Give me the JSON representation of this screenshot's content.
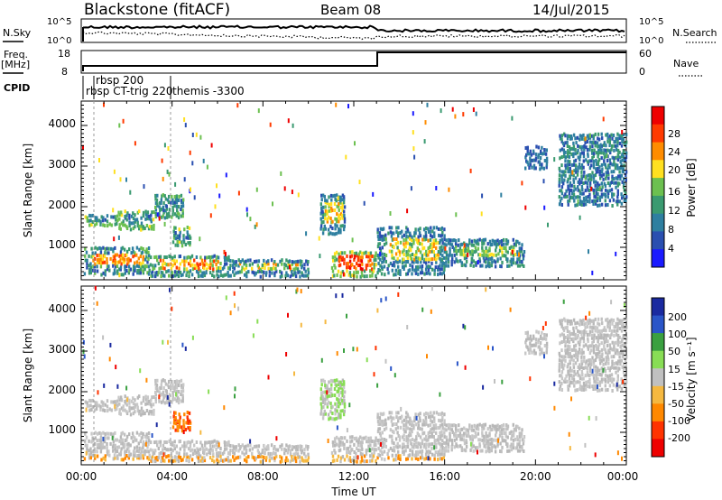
{
  "header": {
    "station": "Blackstone (fitACF)",
    "beam": "Beam 08",
    "date": "14/Jul/2015"
  },
  "top_panel": {
    "left_label": "N.Sky",
    "right_label": "N.Search",
    "left_ticks": [
      "10^5",
      "10^0"
    ],
    "right_ticks": [
      "10^5",
      "10^0"
    ]
  },
  "freq_panel": {
    "left_label_1": "Freq.",
    "left_label_2": "[MHz]",
    "right_label": "Nave",
    "left_ticks": [
      "18",
      "8"
    ],
    "right_ticks": [
      "60",
      "0"
    ]
  },
  "cpid": {
    "label": "CPID",
    "entries": [
      {
        "text": "rbsp 200"
      },
      {
        "text": "rbsp CT-trig 220"
      },
      {
        "text": "themis -3300"
      }
    ]
  },
  "chart_data": [
    {
      "type": "heatmap",
      "title": "",
      "ylabel": "Slant Range [km]",
      "xlabel": "",
      "x_ticks": [
        "00:00",
        "04:00",
        "08:00",
        "12:00",
        "16:00",
        "20:00",
        "00:00"
      ],
      "y_ticks": [
        "1000",
        "2000",
        "3000",
        "4000"
      ],
      "ylim": [
        200,
        4600
      ],
      "colorbar": {
        "label": "Power [dB]",
        "ticks": [
          "4",
          "8",
          "12",
          "16",
          "20",
          "24",
          "28"
        ],
        "colors": [
          "#1a1aff",
          "#2a4fb0",
          "#2e7fa0",
          "#3a9a70",
          "#6cc050",
          "#ffe020",
          "#ff8c00",
          "#ff3a00",
          "#ee0000"
        ]
      }
    },
    {
      "type": "heatmap",
      "title": "",
      "ylabel": "Slant Range [km]",
      "xlabel": "Time UT",
      "x_ticks": [
        "00:00",
        "04:00",
        "08:00",
        "12:00",
        "16:00",
        "20:00",
        "00:00"
      ],
      "y_ticks": [
        "1000",
        "2000",
        "3000",
        "4000"
      ],
      "ylim": [
        200,
        4600
      ],
      "colorbar": {
        "label": "Velocity [m s⁻¹]",
        "ticks": [
          "200",
          "100",
          "50",
          "15",
          "-15",
          "-50",
          "-100",
          "-200"
        ],
        "colors": [
          "#1a2aa0",
          "#2a55c8",
          "#3aa040",
          "#88dd55",
          "#c0c0c0",
          "#f5b840",
          "#ff8800",
          "#ff3300",
          "#ee0000"
        ]
      }
    }
  ]
}
